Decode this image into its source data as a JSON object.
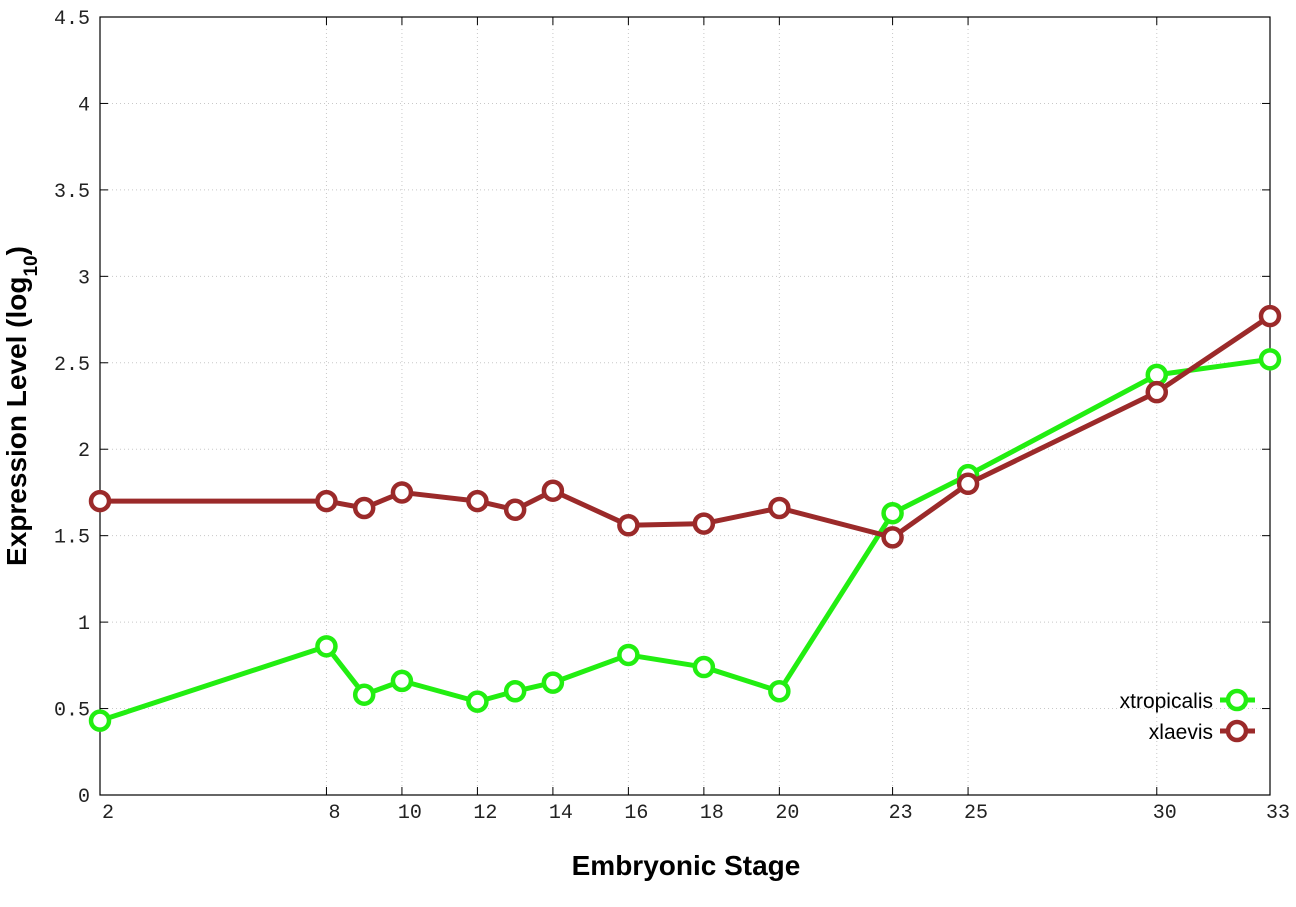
{
  "chart_data": {
    "type": "line",
    "title": "",
    "xlabel": "Embryonic Stage",
    "ylabel": {
      "main": "Expression Level (log",
      "sub": "10",
      "close": ")"
    },
    "x": [
      2,
      8,
      9,
      10,
      12,
      13,
      14,
      16,
      18,
      20,
      23,
      25,
      30,
      33
    ],
    "xticks": [
      2,
      8,
      10,
      12,
      14,
      16,
      18,
      20,
      23,
      25,
      30,
      33
    ],
    "xlim": [
      2,
      33
    ],
    "ylim": [
      0,
      4.5
    ],
    "yticks": [
      0,
      0.5,
      1,
      1.5,
      2,
      2.5,
      3,
      3.5,
      4,
      4.5
    ],
    "grid": true,
    "legend_position": "bottom-right",
    "series": [
      {
        "name": "xtropicalis",
        "color": "#22ee11",
        "values": [
          0.43,
          0.86,
          0.58,
          0.66,
          0.54,
          0.6,
          0.65,
          0.81,
          0.74,
          0.6,
          1.63,
          1.85,
          2.43,
          2.52
        ]
      },
      {
        "name": "xlaevis",
        "color": "#9b2a2a",
        "values": [
          1.7,
          1.7,
          1.66,
          1.75,
          1.7,
          1.65,
          1.76,
          1.56,
          1.57,
          1.66,
          1.49,
          1.8,
          2.33,
          2.77
        ]
      }
    ]
  }
}
